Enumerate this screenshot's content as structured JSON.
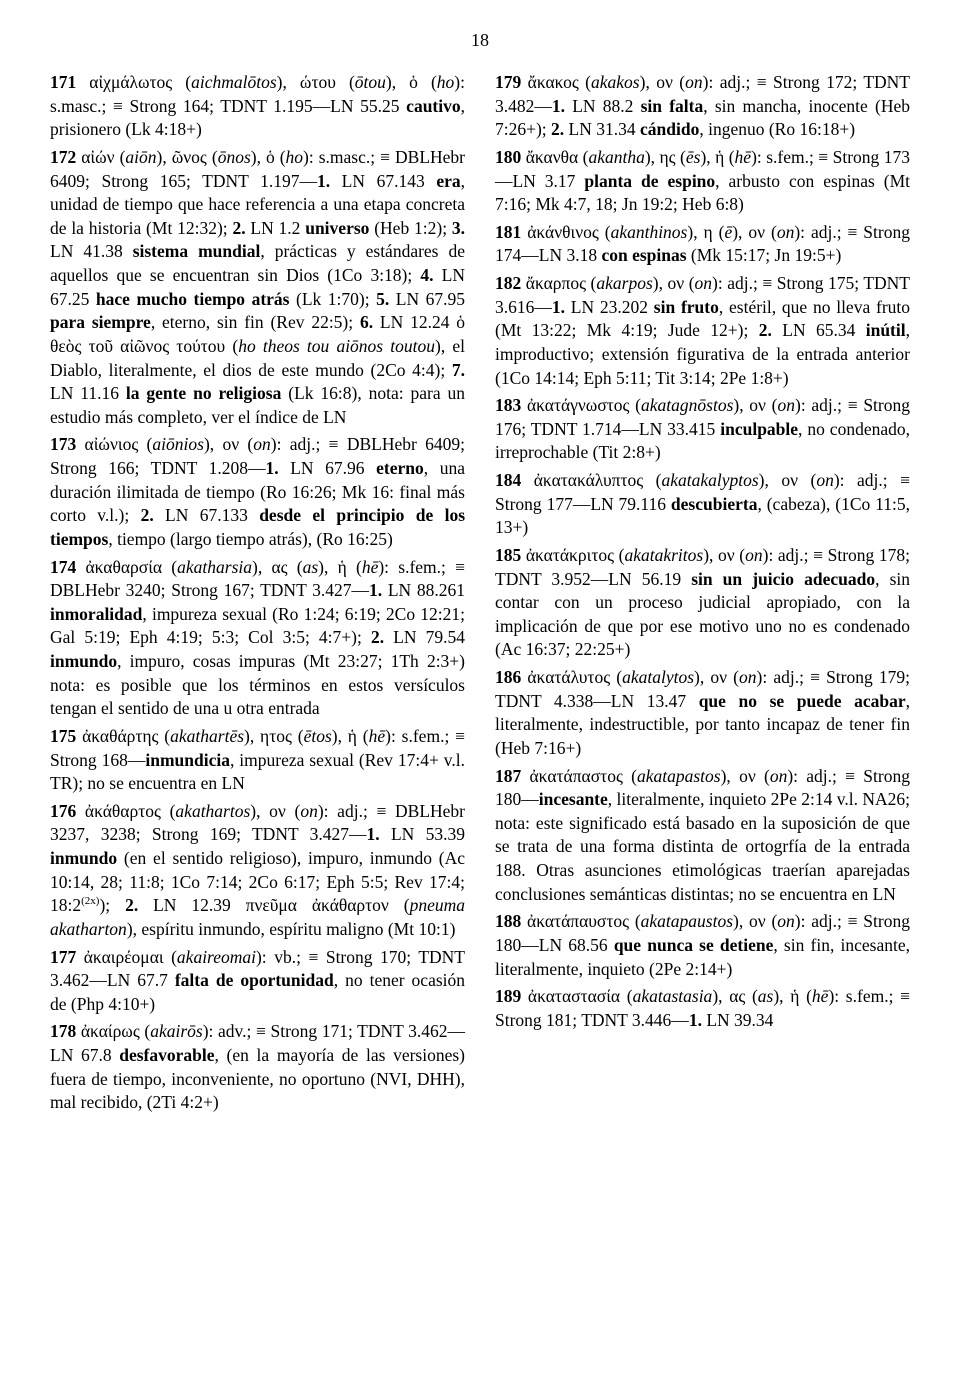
{
  "page_number": "18",
  "entries": [
    {
      "html": "<span class='bold'>171</span> αἰχμάλωτος (<span class='italic'>aichmalōtos</span>), ώτου (<span class='italic'>ōtou</span>), ὁ (<span class='italic'>ho</span>): s.masc.; ≡ Strong 164; TDNT 1.195—LN 55.25 <span class='bold'>cautivo</span>, prisionero (Lk 4:18+)"
    },
    {
      "html": "<span class='bold'>172</span> αἰών (<span class='italic'>aiōn</span>), ῶνος (<span class='italic'>ōnos</span>), ὁ (<span class='italic'>ho</span>): s.masc.; ≡ DBLHebr 6409; Strong 165; TDNT 1.197—<span class='bold'>1.</span> LN 67.143 <span class='bold'>era</span>, unidad de tiempo que hace referencia a una etapa concreta de la historia (Mt 12:32); <span class='bold'>2.</span> LN 1.2 <span class='bold'>universo</span> (Heb 1:2); <span class='bold'>3.</span> LN 41.38 <span class='bold'>sistema mundial</span>, prácticas y estándares de aquellos que se encuentran sin Dios (1Co 3:18); <span class='bold'>4.</span> LN 67.25 <span class='bold'>hace mucho tiempo atrás</span> (Lk 1:70); <span class='bold'>5.</span> LN 67.95 <span class='bold'>para siempre</span>, eterno, sin fin (Rev 22:5); <span class='bold'>6.</span> LN 12.24 ὁ θεὸς τοῦ αἰῶνος τούτου (<span class='italic'>ho theos tou aiōnos toutou</span>), el Diablo, literalmente, el dios de este mundo (2Co 4:4); <span class='bold'>7.</span> LN 11.16 <span class='bold'>la gente no religiosa</span> (Lk 16:8), nota: para un estudio más completo, ver el índice de LN"
    },
    {
      "html": "<span class='bold'>173</span> αἰώνιος (<span class='italic'>aiōnios</span>), ον (<span class='italic'>on</span>): adj.; ≡ DBLHebr 6409; Strong 166; TDNT 1.208—<span class='bold'>1.</span> LN 67.96 <span class='bold'>eterno</span>, una duración ilimitada de tiempo (Ro 16:26; Mk 16: final más corto v.l.); <span class='bold'>2.</span> LN 67.133 <span class='bold'>desde el principio de los tiempos</span>, tiempo (largo tiempo atrás), (Ro 16:25)"
    },
    {
      "html": "<span class='bold'>174</span> ἀκαθαρσία (<span class='italic'>akatharsia</span>), ας (<span class='italic'>as</span>), ἡ (<span class='italic'>hē</span>): s.fem.; ≡ DBLHebr 3240; Strong 167; TDNT 3.427—<span class='bold'>1.</span> LN 88.261 <span class='bold'>inmoralidad</span>, impureza sexual (Ro 1:24; 6:19; 2Co 12:21; Gal 5:19; Eph 4:19; 5:3; Col 3:5; 4:7+); <span class='bold'>2.</span> LN 79.54 <span class='bold'>inmundo</span>, impuro, cosas impuras (Mt 23:27; 1Th 2:3+) nota: es posible que los términos en estos versículos tengan el sentido de una u otra entrada"
    },
    {
      "html": "<span class='bold'>175</span> ἀκαθάρτης (<span class='italic'>akathartēs</span>), ητος (<span class='italic'>ētos</span>), ἡ (<span class='italic'>hē</span>): s.fem.; ≡ Strong 168—<span class='bold'>inmundicia</span>, impureza sexual (Rev 17:4+ v.l. TR); no se encuentra en LN"
    },
    {
      "html": "<span class='bold'>176</span> ἀκάθαρτος (<span class='italic'>akathartos</span>), ον (<span class='italic'>on</span>): adj.; ≡ DBLHebr 3237, 3238; Strong 169; TDNT 3.427—<span class='bold'>1.</span> LN 53.39 <span class='bold'>inmundo</span> (en el sentido religioso), impuro, inmundo (Ac 10:14, 28; 11:8; 1Co 7:14; 2Co 6:17; Eph 5:5; Rev 17:4; 18:2<sup>(2x)</sup>); <span class='bold'>2.</span> LN 12.39 πνεῦμα ἀκάθαρτον (<span class='italic'>pneuma akatharton</span>), espíritu inmundo, espíritu maligno (Mt 10:1)"
    },
    {
      "html": "<span class='bold'>177</span> ἀκαιρέομαι (<span class='italic'>akaireomai</span>): vb.; ≡ Strong 170; TDNT 3.462—LN 67.7 <span class='bold'>falta de oportunidad</span>, no tener ocasión de (Php 4:10+)"
    },
    {
      "html": "<span class='bold'>178</span> ἀκαίρως (<span class='italic'>akairōs</span>): adv.; ≡ Strong 171; TDNT 3.462—LN 67.8 <span class='bold'>desfavorable</span>, (en la mayoría de las versiones) fuera de tiempo, inconveniente, no oportuno (NVI, DHH), mal recibido, (2Ti 4:2+)"
    },
    {
      "html": "<span class='bold'>179</span> ἄκακος (<span class='italic'>akakos</span>), ον (<span class='italic'>on</span>): adj.; ≡ Strong 172; TDNT 3.482—<span class='bold'>1.</span> LN 88.2 <span class='bold'>sin falta</span>, sin mancha, inocente (Heb 7:26+); <span class='bold'>2.</span> LN 31.34 <span class='bold'>cándido</span>, ingenuo (Ro 16:18+)"
    },
    {
      "html": "<span class='bold'>180</span> ἄκανθα (<span class='italic'>akantha</span>), ης (<span class='italic'>ēs</span>), ἡ (<span class='italic'>hē</span>): s.fem.; ≡ Strong 173—LN 3.17 <span class='bold'>planta de espino</span>, arbusto con espinas (Mt 7:16; Mk 4:7, 18; Jn 19:2; Heb 6:8)"
    },
    {
      "html": "<span class='bold'>181</span> ἀκάνθινος (<span class='italic'>akanthinos</span>), η (<span class='italic'>ē</span>), ον (<span class='italic'>on</span>): adj.; ≡ Strong 174—LN 3.18 <span class='bold'>con espinas</span> (Mk 15:17; Jn 19:5+)"
    },
    {
      "html": "<span class='bold'>182</span> ἄκαρπος (<span class='italic'>akarpos</span>), ον (<span class='italic'>on</span>): adj.; ≡ Strong 175; TDNT 3.616—<span class='bold'>1.</span> LN 23.202 <span class='bold'>sin fruto</span>, estéril, que no lleva fruto (Mt 13:22; Mk 4:19; Jude 12+); <span class='bold'>2.</span> LN 65.34 <span class='bold'>inútil</span>, improductivo; extensión figurativa de la entrada anterior (1Co 14:14; Eph 5:11; Tit 3:14; 2Pe 1:8+)"
    },
    {
      "html": "<span class='bold'>183</span> ἀκατάγνωστος (<span class='italic'>akatagnōstos</span>), ον (<span class='italic'>on</span>): adj.; ≡ Strong 176; TDNT 1.714—LN 33.415 <span class='bold'>inculpable</span>, no condenado, irreprochable (Tit 2:8+)"
    },
    {
      "html": "<span class='bold'>184</span> ἀκατακάλυπτος (<span class='italic'>akatakalyptos</span>), ον (<span class='italic'>on</span>): adj.; ≡ Strong 177—LN 79.116 <span class='bold'>descubierta</span>, (cabeza), (1Co 11:5, 13+)"
    },
    {
      "html": "<span class='bold'>185</span> ἀκατάκριτος (<span class='italic'>akatakritos</span>), ον (<span class='italic'>on</span>): adj.; ≡ Strong 178; TDNT 3.952—LN 56.19 <span class='bold'>sin un juicio adecuado</span>, sin contar con un proceso judicial apropiado, con la implicación de que por ese motivo uno no es condenado (Ac 16:37; 22:25+)"
    },
    {
      "html": "<span class='bold'>186</span> ἀκατάλυτος (<span class='italic'>akatalytos</span>), ον (<span class='italic'>on</span>): adj.; ≡ Strong 179; TDNT 4.338—LN 13.47 <span class='bold'>que no se puede acabar</span>, literalmente, indestructible, por tanto incapaz de tener fin (Heb 7:16+)"
    },
    {
      "html": "<span class='bold'>187</span> ἀκατάπαστος (<span class='italic'>akatapastos</span>), ον (<span class='italic'>on</span>): adj.; ≡ Strong 180—<span class='bold'>incesante</span>, literalmente, inquieto 2Pe 2:14 v.l. NA26; nota: este significado está basado en la suposición de que se trata de una forma distinta de ortogrfía de la entrada 188. Otras asunciones etimológicas traerían aparejadas conclusiones semánticas distintas; no se encuentra en LN"
    },
    {
      "html": "<span class='bold'>188</span> ἀκατάπαυστος (<span class='italic'>akatapaustos</span>), ον (<span class='italic'>on</span>): adj.; ≡ Strong 180—LN 68.56 <span class='bold'>que nunca se detiene</span>, sin fin, incesante, literalmente, inquieto (2Pe 2:14+)"
    },
    {
      "html": "<span class='bold'>189</span> ἀκαταστασία (<span class='italic'>akatastasia</span>), ας (<span class='italic'>as</span>), ἡ (<span class='italic'>hē</span>): s.fem.; ≡ Strong 181; TDNT 3.446—<span class='bold'>1.</span> LN 39.34"
    }
  ]
}
